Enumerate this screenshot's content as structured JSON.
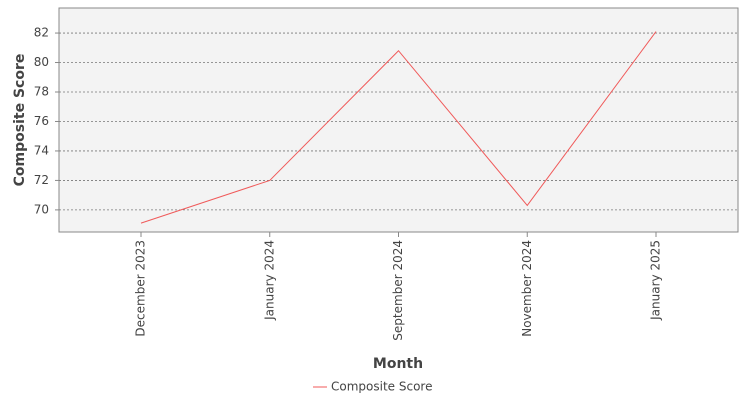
{
  "chart_data": {
    "type": "line",
    "x_label": "Month",
    "y_label": "Composite Score",
    "categories": [
      "December 2023",
      "January 2024",
      "September 2024",
      "November 2024",
      "January 2025"
    ],
    "series": [
      {
        "name": "Composite Score",
        "color": "#f05a5a",
        "values": [
          69.1,
          72.0,
          80.8,
          70.3,
          82.1
        ]
      }
    ],
    "ylim": [
      68.5,
      83.7
    ],
    "yticks": [
      70,
      72,
      74,
      76,
      78,
      80,
      82
    ],
    "grid": true,
    "legend": "bottom"
  }
}
